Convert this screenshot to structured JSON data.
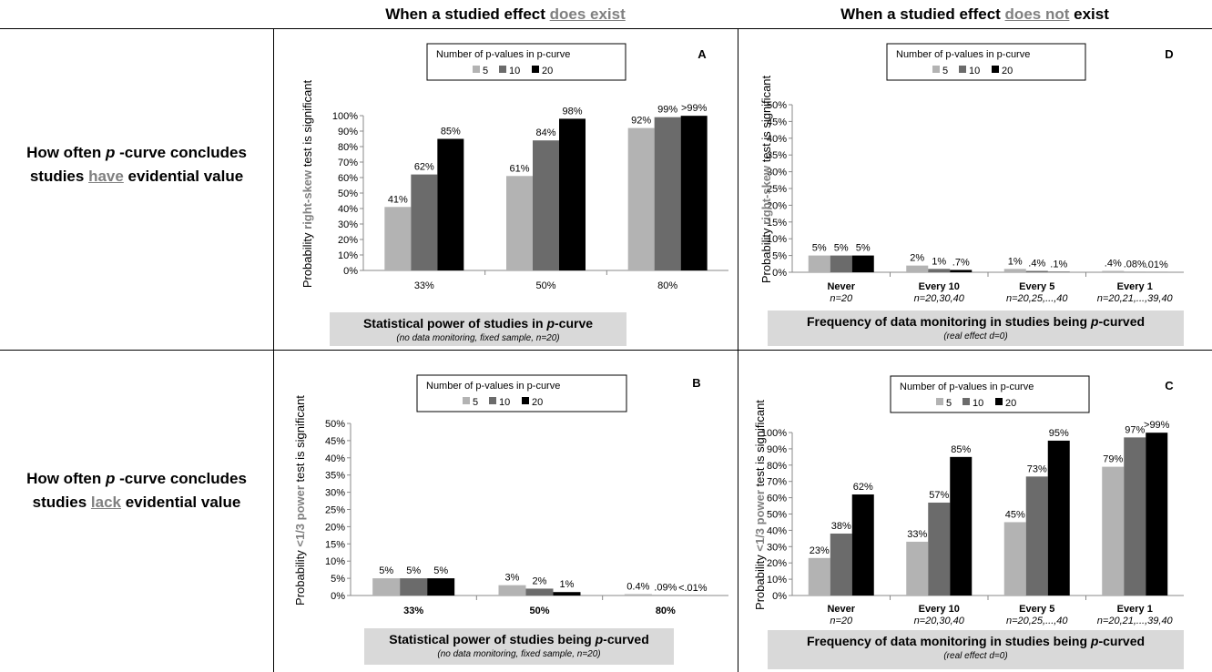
{
  "headers": {
    "left": {
      "pre": "When a studied effect ",
      "u": "does exist"
    },
    "right": {
      "pre": "When a studied effect ",
      "u": "does not",
      "post": " exist"
    }
  },
  "row_labels": {
    "top": {
      "line1_pre": "How often ",
      "line1_i": "p",
      "line1_post": " -curve concludes",
      "line2_pre": "studies ",
      "line2_u": "have",
      "line2_post": " evidential value"
    },
    "bottom": {
      "line1_pre": "How often ",
      "line1_i": "p",
      "line1_post": " -curve concludes",
      "line2_pre": "studies ",
      "line2_u": "lack",
      "line2_post": " evidential value"
    }
  },
  "colors": {
    "s5": "#b3b3b3",
    "s10": "#6b6b6b",
    "s20": "#000000",
    "grey_box": "#d9d9d9",
    "accent_text": "#808080"
  },
  "chart_data": [
    {
      "id": "A",
      "type": "bar",
      "legend_title": "Number of p-values in p-curve",
      "series_names": [
        "5",
        "10",
        "20"
      ],
      "ylabel_pre": "Probability ",
      "ylabel_accent": "right-skew",
      "ylabel_post": " test is significant",
      "ylim": [
        0,
        100
      ],
      "ystep": 10,
      "yticks": [
        "0%",
        "10%",
        "20%",
        "30%",
        "40%",
        "50%",
        "60%",
        "70%",
        "80%",
        "90%",
        "100%"
      ],
      "categories": [
        "33%",
        "50%",
        "80%"
      ],
      "sublabels": [],
      "values": [
        [
          41,
          62,
          85
        ],
        [
          61,
          84,
          98
        ],
        [
          92,
          99,
          99.9
        ]
      ],
      "value_labels": [
        [
          "41%",
          "62%",
          "85%"
        ],
        [
          "61%",
          "84%",
          "98%"
        ],
        [
          "92%",
          "99%",
          ">99%"
        ]
      ],
      "xtitle_pre": "Statistical power of studies in ",
      "xtitle_i": "p",
      "xtitle_post": "-curve",
      "xsub": "(no data monitoring, fixed sample, n=20)"
    },
    {
      "id": "D",
      "type": "bar",
      "legend_title": "Number of p-values in p-curve",
      "series_names": [
        "5",
        "10",
        "20"
      ],
      "ylabel_pre": "Probability ",
      "ylabel_accent": "right-skew",
      "ylabel_post": " test is significant",
      "ylim": [
        0,
        50
      ],
      "ystep": 5,
      "yticks": [
        "0%",
        "5%",
        "10%",
        "15%",
        "20%",
        "25%",
        "30%",
        "35%",
        "40%",
        "45%",
        "50%"
      ],
      "categories": [
        "Never",
        "Every 10",
        "Every 5",
        "Every 1"
      ],
      "sublabels": [
        "n=20",
        "n=20,30,40",
        "n=20,25,...,40",
        "n=20,21,...,39,40"
      ],
      "values": [
        [
          5,
          5,
          5
        ],
        [
          2,
          1,
          0.7
        ],
        [
          1,
          0.4,
          0.1
        ],
        [
          0.4,
          0.08,
          0.01
        ]
      ],
      "value_labels": [
        [
          "5%",
          "5%",
          "5%"
        ],
        [
          "2%",
          "1%",
          ".7%"
        ],
        [
          "1%",
          ".4%",
          ".1%"
        ],
        [
          ".4%",
          ".08%",
          ".01%"
        ]
      ],
      "xtitle_pre": "Frequency of data monitoring in studies being ",
      "xtitle_i": "p",
      "xtitle_post": "-curved",
      "xsub": "(real effect d=0)"
    },
    {
      "id": "B",
      "type": "bar",
      "legend_title": "Number of p-values in p-curve",
      "series_names": [
        "5",
        "10",
        "20"
      ],
      "ylabel_pre": "Probability ",
      "ylabel_accent": "<1/3 power",
      "ylabel_post": " test is significant",
      "ylim": [
        0,
        50
      ],
      "ystep": 5,
      "yticks": [
        "0%",
        "5%",
        "10%",
        "15%",
        "20%",
        "25%",
        "30%",
        "35%",
        "40%",
        "45%",
        "50%"
      ],
      "categories": [
        "33%",
        "50%",
        "80%"
      ],
      "sublabels": [],
      "values": [
        [
          5,
          5,
          5
        ],
        [
          3,
          2,
          1
        ],
        [
          0.4,
          0.09,
          0.01
        ]
      ],
      "value_labels": [
        [
          "5%",
          "5%",
          "5%"
        ],
        [
          "3%",
          "2%",
          "1%"
        ],
        [
          "0.4%",
          ".09%",
          "<.01%"
        ]
      ],
      "xtitle_pre": "Statistical power of studies being ",
      "xtitle_i": "p",
      "xtitle_post": "-curved",
      "xsub": "(no data monitoring, fixed sample, n=20)"
    },
    {
      "id": "C",
      "type": "bar",
      "legend_title": "Number of p-values in p-curve",
      "series_names": [
        "5",
        "10",
        "20"
      ],
      "ylabel_pre": "Probability ",
      "ylabel_accent": "<1/3 power",
      "ylabel_post": " test is significant",
      "ylim": [
        0,
        100
      ],
      "ystep": 10,
      "yticks": [
        "0%",
        "10%",
        "20%",
        "30%",
        "40%",
        "50%",
        "60%",
        "70%",
        "80%",
        "90%",
        "100%"
      ],
      "categories": [
        "Never",
        "Every 10",
        "Every 5",
        "Every 1"
      ],
      "sublabels": [
        "n=20",
        "n=20,30,40",
        "n=20,25,...,40",
        "n=20,21,...,39,40"
      ],
      "values": [
        [
          23,
          38,
          62
        ],
        [
          33,
          57,
          85
        ],
        [
          45,
          73,
          95
        ],
        [
          79,
          97,
          99.9
        ]
      ],
      "value_labels": [
        [
          "23%",
          "38%",
          "62%"
        ],
        [
          "33%",
          "57%",
          "85%"
        ],
        [
          "45%",
          "73%",
          "95%"
        ],
        [
          "79%",
          "97%",
          ">99%"
        ]
      ],
      "xtitle_pre": "Frequency of data monitoring in studies being ",
      "xtitle_i": "p",
      "xtitle_post": "-curved",
      "xsub": "(real effect d=0)"
    }
  ]
}
